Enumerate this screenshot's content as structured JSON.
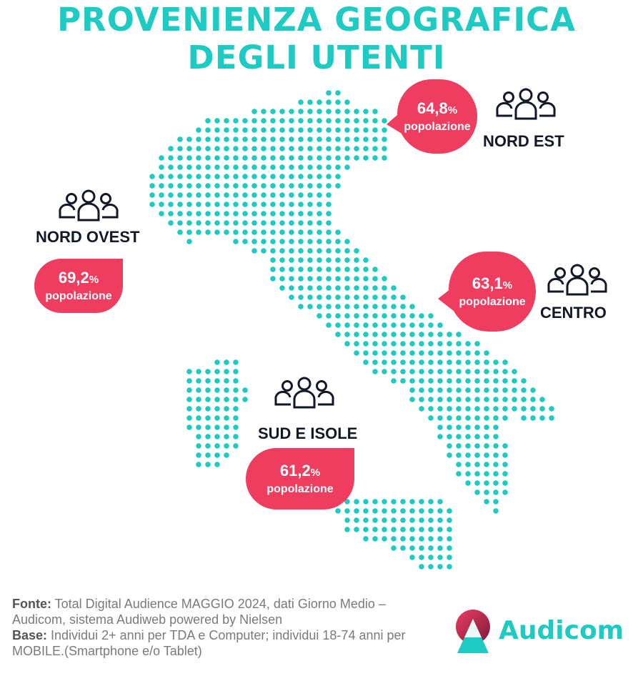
{
  "title": {
    "line1": "PROVENIENZA GEOGRAFICA",
    "line2": "DEGLI UTENTI"
  },
  "regions": [
    {
      "id": "nord-est",
      "name": "NORD EST",
      "value": "64,8",
      "unit": "%",
      "caption": "popolazione"
    },
    {
      "id": "nord-ovest",
      "name": "NORD OVEST",
      "value": "69,2",
      "unit": "%",
      "caption": "popolazione"
    },
    {
      "id": "centro",
      "name": "CENTRO",
      "value": "63,1",
      "unit": "%",
      "caption": "popolazione"
    },
    {
      "id": "sud-isole",
      "name": "SUD E ISOLE",
      "value": "61,2",
      "unit": "%",
      "caption": "popolazione"
    }
  ],
  "footer": {
    "fonte_label": "Fonte:",
    "fonte_text": " Total Digital Audience MAGGIO 2024, dati Giorno Medio – Audicom, sistema Audiweb powered by Nielsen",
    "base_label": "Base:",
    "base_text": "  Individui 2+ anni per TDA e Computer; individui 18-74 anni per MOBILE.(Smartphone e/o Tablet)"
  },
  "brand": {
    "name": "Audicom"
  },
  "colors": {
    "accent": "#1ecbc3",
    "bubble": "#ef3d60",
    "dots": "#1ecbc3",
    "text_dark": "#121826"
  },
  "icons": [
    "people-group-icon",
    "audicom-logo-icon"
  ]
}
